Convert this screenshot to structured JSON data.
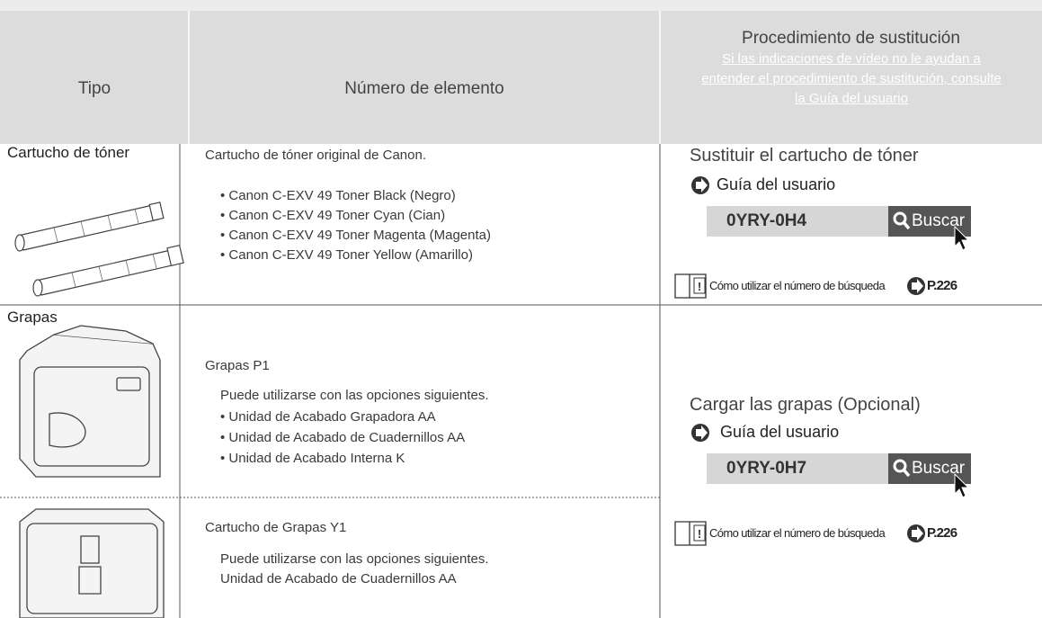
{
  "header": {
    "type": "Tipo",
    "number": "Número de elemento",
    "procedure": "Procedimiento de sustitución",
    "note": "Si las indicaciones de vídeo no le ayudan a entender el procedimiento de sustitución, consulte la Guía del usuario"
  },
  "rows": [
    {
      "type": "Cartucho de tóner",
      "items": [
        {
          "title": "Cartucho de tóner original de Canon.",
          "lines": [
            "• Canon C-EXV 49 Toner Black (Negro)",
            "• Canon C-EXV 49 Toner Cyan (Cian)",
            "• Canon C-EXV 49 Toner Magenta (Magenta)",
            "• Canon C-EXV 49 Toner Yellow (Amarillo)"
          ]
        }
      ],
      "procedure": {
        "title": "Sustituir el cartucho de tóner",
        "guide": "Guía del usuario",
        "code": "0YRY-0H4",
        "search": "Buscar",
        "howto": "Cómo utilizar el número de búsqueda",
        "page": "P.226"
      }
    },
    {
      "type": "Grapas",
      "items": [
        {
          "title": "Grapas P1",
          "lines": [
            "Puede utilizarse con las opciones siguientes.",
            "• Unidad de Acabado Grapadora AA",
            "• Unidad de Acabado de Cuadernillos AA",
            "• Unidad de Acabado Interna K"
          ]
        },
        {
          "title": "Cartucho de Grapas Y1",
          "lines": [
            "Puede utilizarse con las opciones siguientes.",
            "Unidad de Acabado de Cuadernillos AA"
          ]
        }
      ],
      "procedure": {
        "title": "Cargar las grapas (Opcional)",
        "guide": "Guía del usuario",
        "code": "0YRY-0H7",
        "search": "Buscar",
        "howto": "Cómo utilizar el número de búsqueda",
        "page": "P.226"
      }
    }
  ]
}
